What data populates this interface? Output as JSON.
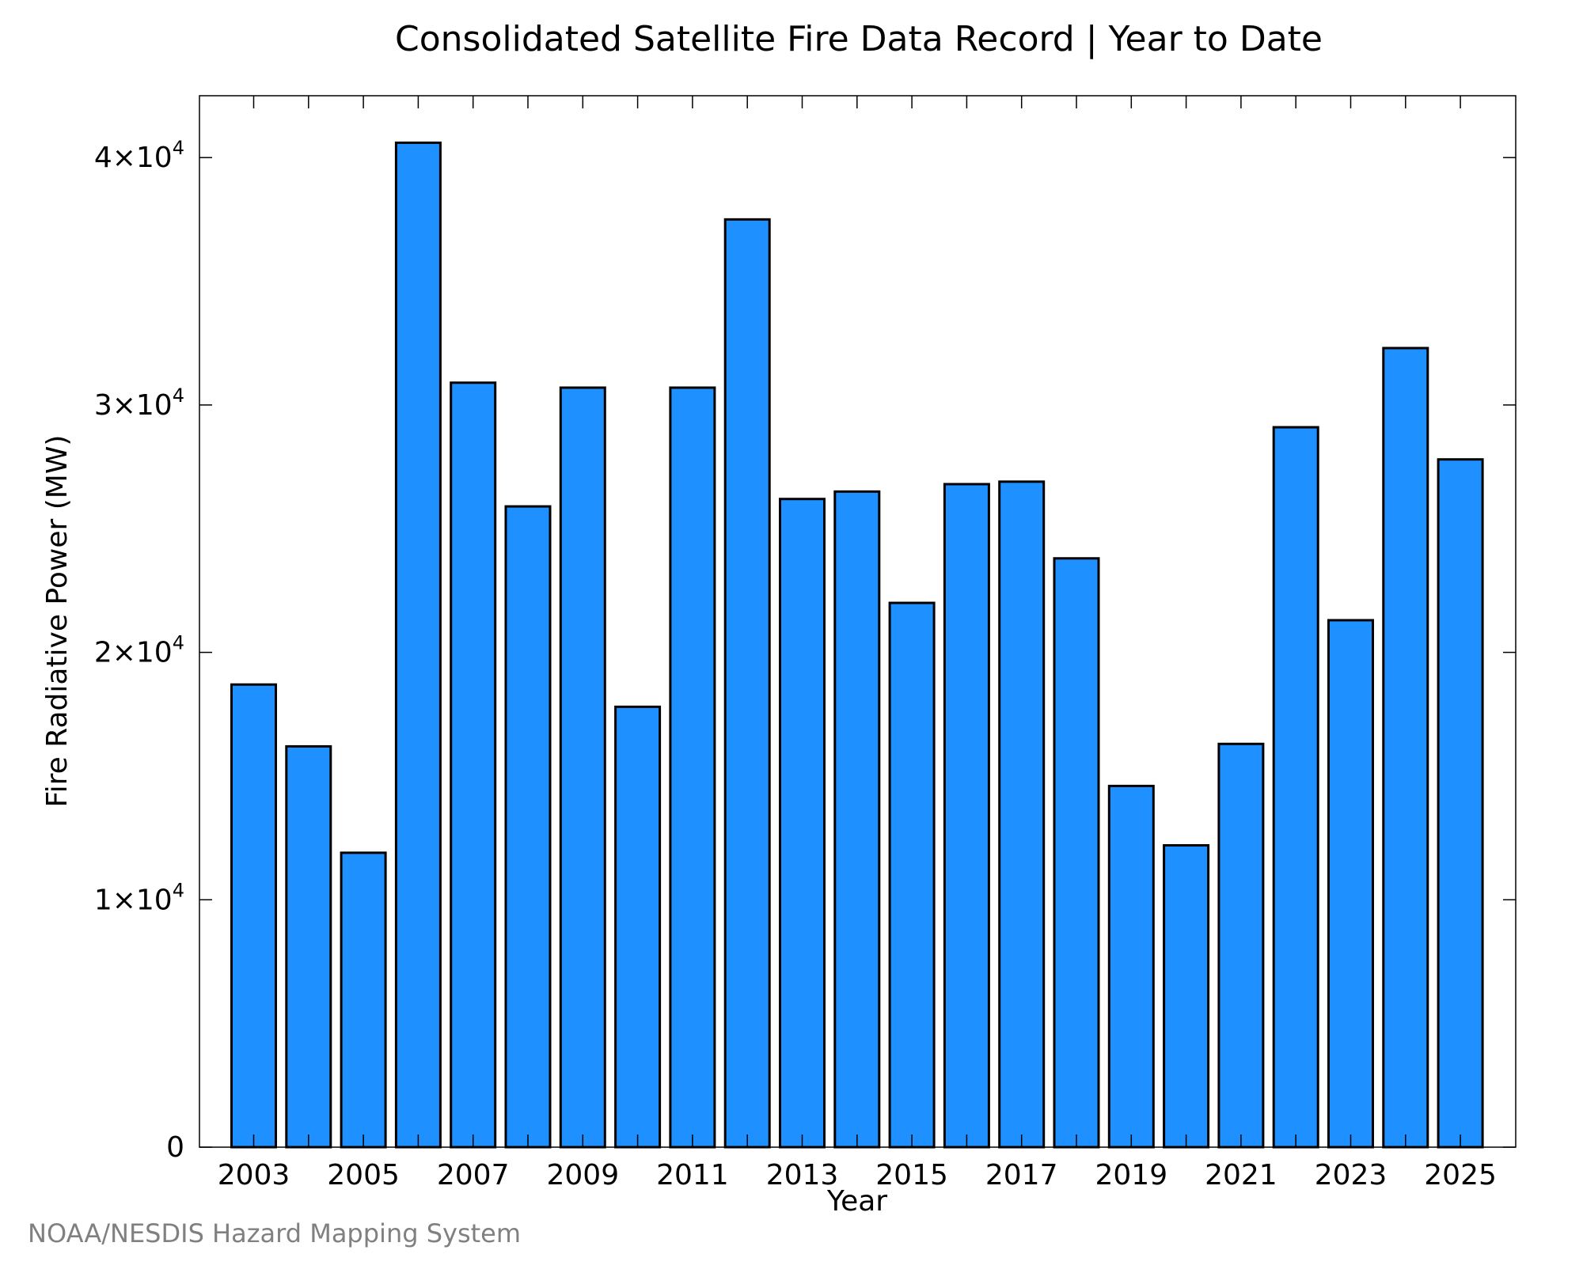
{
  "chart_data": {
    "type": "bar",
    "title": "Consolidated Satellite Fire Data Record | Year to Date",
    "xlabel": "Year",
    "ylabel": "Fire Radiative Power (MW)",
    "categories": [
      "2003",
      "2004",
      "2005",
      "2006",
      "2007",
      "2008",
      "2009",
      "2010",
      "2011",
      "2012",
      "2013",
      "2014",
      "2015",
      "2016",
      "2017",
      "2018",
      "2019",
      "2020",
      "2021",
      "2022",
      "2023",
      "2024",
      "2025"
    ],
    "values": [
      18700,
      16200,
      11900,
      40600,
      30900,
      25900,
      30700,
      17800,
      30700,
      37500,
      26200,
      26500,
      22000,
      26800,
      26900,
      23800,
      14600,
      12200,
      16300,
      29100,
      21300,
      32300,
      27800
    ],
    "xtick_labels": [
      "2003",
      "2005",
      "2007",
      "2009",
      "2011",
      "2013",
      "2015",
      "2017",
      "2019",
      "2021",
      "2023",
      "2025"
    ],
    "ytick_values": [
      0,
      10000,
      20000,
      30000,
      40000
    ],
    "ytick_labels": [
      {
        "value": "0",
        "mantissa": "",
        "exponent": ""
      },
      {
        "value": "",
        "mantissa": "1×10",
        "exponent": "4"
      },
      {
        "value": "",
        "mantissa": "2×10",
        "exponent": "4"
      },
      {
        "value": "",
        "mantissa": "3×10",
        "exponent": "4"
      },
      {
        "value": "",
        "mantissa": "4×10",
        "exponent": "4"
      }
    ],
    "ylim": [
      0,
      42500
    ],
    "bar_color": "#1e90ff",
    "edge_color": "#000000",
    "grid": false,
    "legend": "none"
  },
  "footer": {
    "source": "NOAA/NESDIS Hazard Mapping System"
  }
}
